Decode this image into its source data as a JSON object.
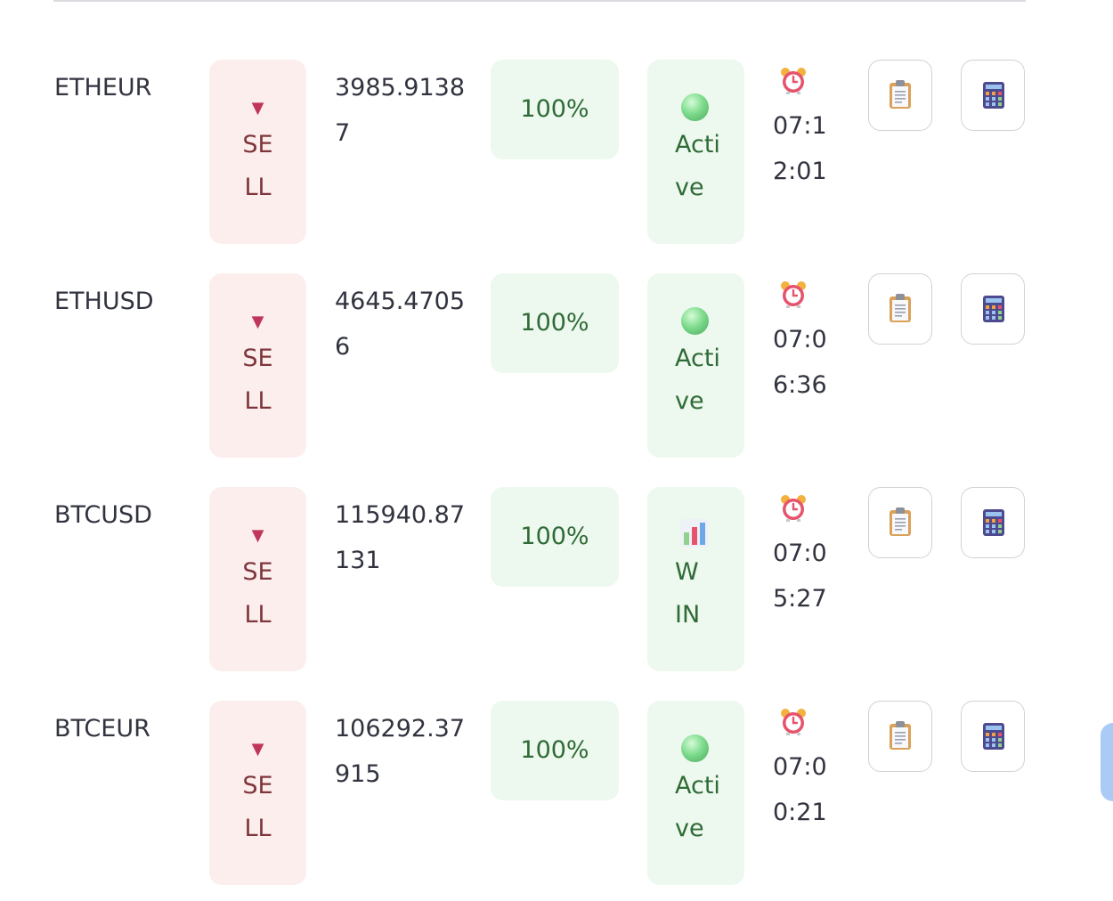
{
  "rows": [
    {
      "symbol": "ETHEUR",
      "side": "SELL",
      "price": "3985.91387",
      "confidence": "100%",
      "status": "Active",
      "status_icon": "green-circle-icon",
      "time": "07:12:01"
    },
    {
      "symbol": "ETHUSD",
      "side": "SELL",
      "price": "4645.47056",
      "confidence": "100%",
      "status": "Active",
      "status_icon": "green-circle-icon",
      "time": "07:06:36"
    },
    {
      "symbol": "BTCUSD",
      "side": "SELL",
      "price": "115940.87131",
      "confidence": "100%",
      "status": "WIN",
      "status_icon": "bar-chart-icon",
      "time": "07:05:27"
    },
    {
      "symbol": "BTCEUR",
      "side": "SELL",
      "price": "106292.37915",
      "confidence": "100%",
      "status": "Active",
      "status_icon": "green-circle-icon",
      "time": "07:00:21"
    }
  ],
  "icons": {
    "side": "down-triangle-icon",
    "time": "alarm-clock-icon",
    "copy": "clipboard-icon",
    "calc": "calculator-icon"
  },
  "colors": {
    "sell_bg": "#fdeeee",
    "sell_text": "#7d353b",
    "positive_bg": "#edf8ee",
    "positive_text": "#2f6b36"
  }
}
